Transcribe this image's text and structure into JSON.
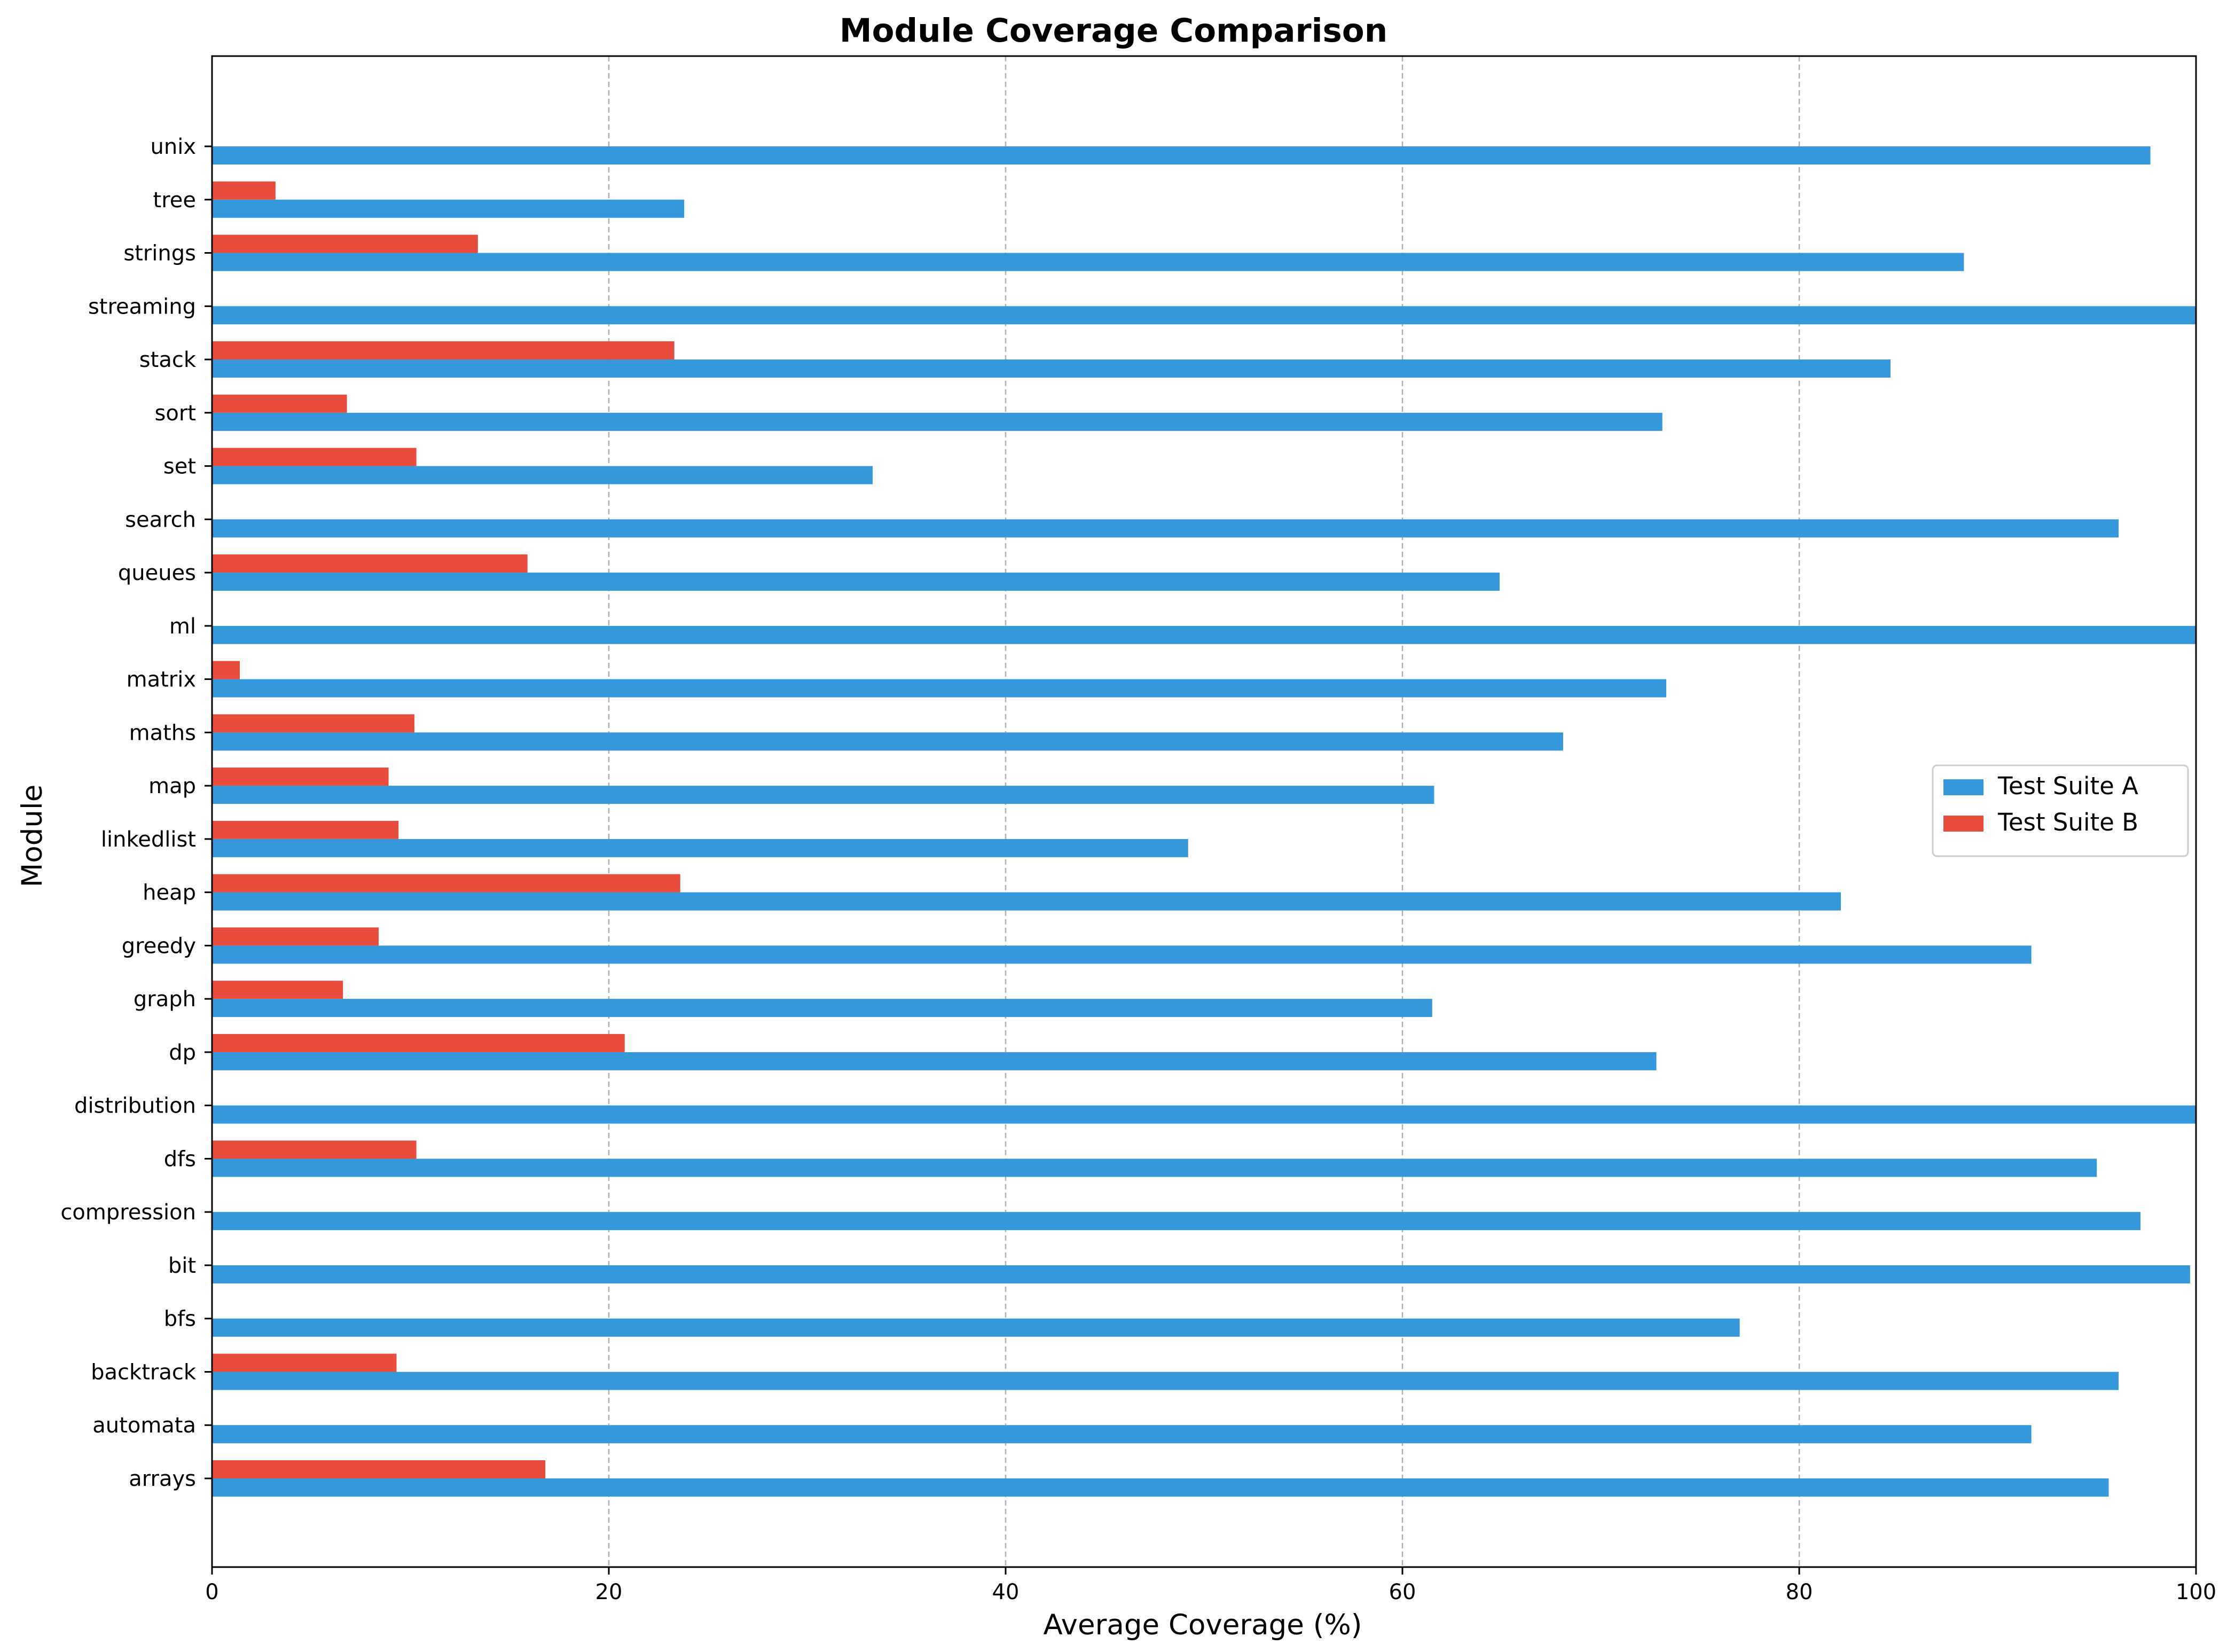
{
  "chart_data": {
    "type": "bar",
    "orientation": "horizontal",
    "title": "Module Coverage Comparison",
    "xlabel": "Average Coverage (%)",
    "ylabel": "Module",
    "xlim": [
      0,
      100
    ],
    "xticks": [
      0,
      20,
      40,
      60,
      80,
      100
    ],
    "grid": "x-dashed",
    "legend_position": "center-right",
    "categories": [
      "arrays",
      "automata",
      "backtrack",
      "bfs",
      "bit",
      "compression",
      "dfs",
      "distribution",
      "dp",
      "graph",
      "greedy",
      "heap",
      "linkedlist",
      "map",
      "maths",
      "matrix",
      "ml",
      "queues",
      "search",
      "set",
      "sort",
      "stack",
      "streaming",
      "strings",
      "tree",
      "unix"
    ],
    "series": [
      {
        "name": "Test Suite A",
        "color": "#3498db",
        "values": [
          95.6,
          91.7,
          96.1,
          77.0,
          99.7,
          97.2,
          95.0,
          100.0,
          72.8,
          61.5,
          91.7,
          82.1,
          49.2,
          61.6,
          68.1,
          73.3,
          100.0,
          64.9,
          96.1,
          33.3,
          73.1,
          84.6,
          100.0,
          88.3,
          23.8,
          97.7
        ]
      },
      {
        "name": "Test Suite B",
        "color": "#e74c3c",
        "values": [
          16.8,
          0,
          9.3,
          0,
          0,
          0,
          10.3,
          0,
          20.8,
          6.6,
          8.4,
          23.6,
          9.4,
          8.9,
          10.2,
          1.4,
          0,
          15.9,
          0,
          10.3,
          6.8,
          23.3,
          0,
          13.4,
          3.2,
          0
        ]
      }
    ]
  }
}
